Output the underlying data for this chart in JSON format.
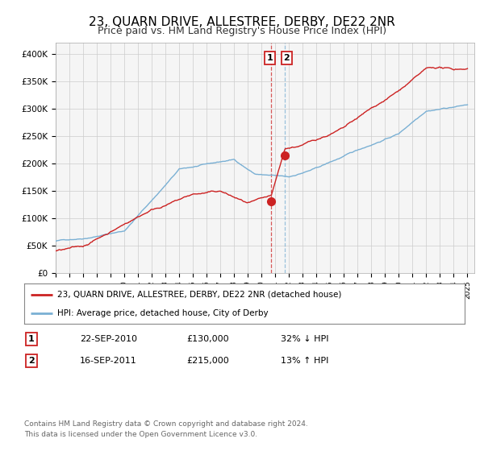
{
  "title": "23, QUARN DRIVE, ALLESTREE, DERBY, DE22 2NR",
  "subtitle": "Price paid vs. HM Land Registry's House Price Index (HPI)",
  "title_fontsize": 11,
  "subtitle_fontsize": 9,
  "hpi_color": "#7ab0d4",
  "price_color": "#cc2222",
  "ylim": [
    0,
    420000
  ],
  "yticks": [
    0,
    50000,
    100000,
    150000,
    200000,
    250000,
    300000,
    350000,
    400000
  ],
  "ytick_labels": [
    "£0",
    "£50K",
    "£100K",
    "£150K",
    "£200K",
    "£250K",
    "£300K",
    "£350K",
    "£400K"
  ],
  "sale1_year": 2010.72,
  "sale1_price": 130000,
  "sale2_year": 2011.71,
  "sale2_price": 215000,
  "sale1_date": "22-SEP-2010",
  "sale1_amount": "£130,000",
  "sale1_hpi_pct": "32% ↓ HPI",
  "sale2_date": "16-SEP-2011",
  "sale2_amount": "£215,000",
  "sale2_hpi_pct": "13% ↑ HPI",
  "legend_entry1": "23, QUARN DRIVE, ALLESTREE, DERBY, DE22 2NR (detached house)",
  "legend_entry2": "HPI: Average price, detached house, City of Derby",
  "footnote1": "Contains HM Land Registry data © Crown copyright and database right 2024.",
  "footnote2": "This data is licensed under the Open Government Licence v3.0.",
  "background_color": "#f5f5f5",
  "grid_color": "#cccccc"
}
